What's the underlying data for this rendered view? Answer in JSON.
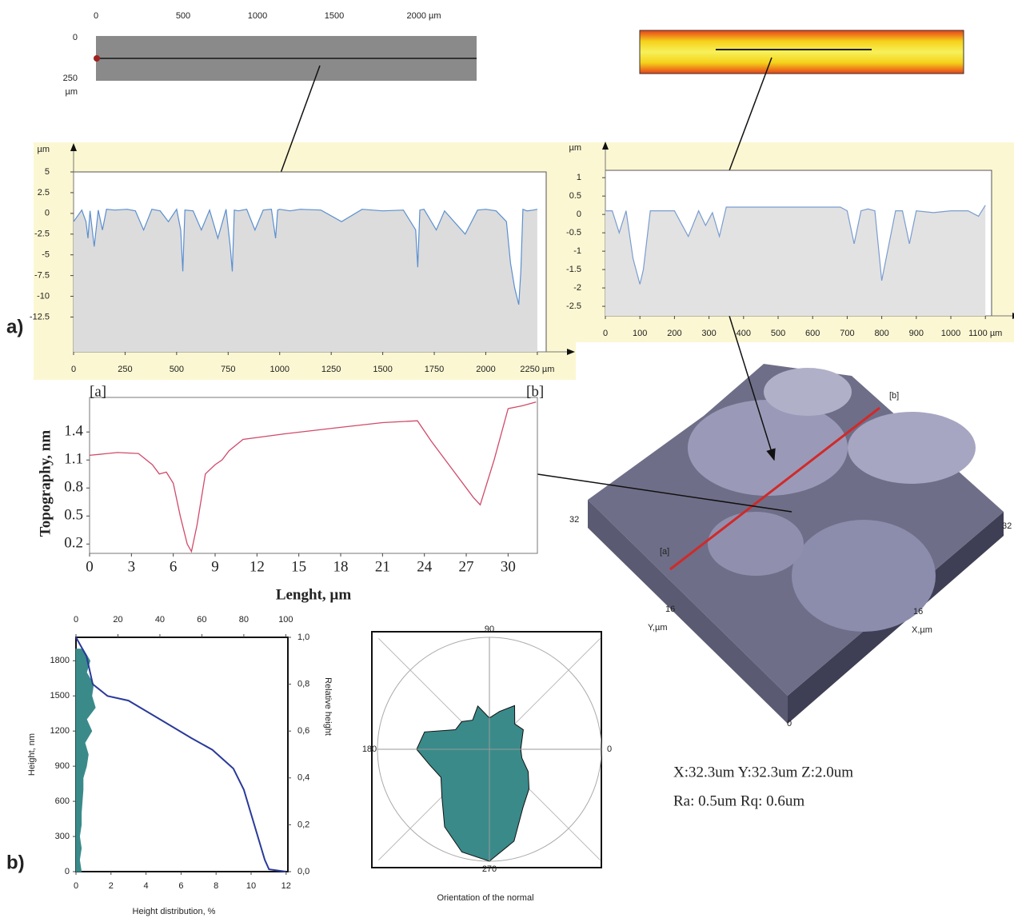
{
  "panel_labels": [
    "a)",
    "b)"
  ],
  "micrograph": {
    "x_labels": [
      "0",
      "500",
      "1000",
      "1500",
      "2000 µm"
    ],
    "y_labels": [
      "0",
      "250",
      "µm"
    ]
  },
  "surface_3d": {
    "labels": [
      "[b]",
      "[a]",
      "32",
      "16",
      "Y,µm",
      "16",
      "X,µm",
      "32",
      "0"
    ]
  },
  "stats": [
    "X:32.3um  Y:32.3um  Z:2.0um",
    "Ra: 0.5um  Rq: 0.6um"
  ],
  "chart_data": [
    {
      "type": "area",
      "y_unit": "µm",
      "x": [
        0,
        40,
        60,
        70,
        80,
        100,
        120,
        140,
        160,
        200,
        260,
        300,
        340,
        380,
        420,
        460,
        500,
        520,
        530,
        540,
        580,
        620,
        660,
        700,
        740,
        760,
        770,
        780,
        800,
        840,
        880,
        920,
        960,
        980,
        990,
        1000,
        1050,
        1100,
        1200,
        1300,
        1400,
        1500,
        1600,
        1660,
        1670,
        1680,
        1700,
        1760,
        1800,
        1900,
        1960,
        2000,
        2050,
        2100,
        2120,
        2140,
        2160,
        2170,
        2180,
        2200,
        2230,
        2250
      ],
      "series": [
        {
          "color": "#5b8fd0",
          "fill": "#dcdcdc",
          "values": [
            -1,
            0.4,
            -1,
            -3,
            0.3,
            -4,
            0.4,
            -2,
            0.5,
            0.4,
            0.5,
            0.3,
            -2,
            0.5,
            0.3,
            -1,
            0.5,
            -2,
            -7,
            0.4,
            0.3,
            -2,
            0.4,
            -3,
            0.5,
            -4,
            -7,
            0.4,
            0.3,
            0.5,
            -2,
            0.4,
            0.5,
            -3,
            0.4,
            0.5,
            0.3,
            0.5,
            0.4,
            -1,
            0.5,
            0.3,
            0.4,
            -2,
            -6.5,
            0.4,
            0.5,
            -2,
            0.3,
            -2.5,
            0.4,
            0.5,
            0.3,
            -1,
            -6,
            -9,
            -11,
            -7,
            0.5,
            0.3,
            0.4,
            0.5
          ]
        }
      ],
      "xlim": [
        0,
        2293
      ],
      "ylim": [
        -16.7,
        5
      ],
      "xticks": [
        0,
        250,
        500,
        750,
        1000,
        1250,
        1500,
        1750,
        2000,
        {
          "value": 2250,
          "label": "2250 µm"
        }
      ],
      "yticks": [
        5,
        2.5,
        0,
        -2.5,
        -5,
        -7.5,
        -10,
        -12.5
      ]
    },
    {
      "type": "area",
      "y_unit": "µm",
      "x": [
        0,
        20,
        40,
        60,
        80,
        100,
        110,
        130,
        150,
        200,
        240,
        270,
        290,
        310,
        330,
        350,
        400,
        500,
        600,
        680,
        700,
        720,
        740,
        760,
        780,
        800,
        840,
        860,
        880,
        900,
        950,
        1000,
        1050,
        1080,
        1100
      ],
      "series": [
        {
          "color": "#7a9cd0",
          "fill": "#e2e2e2",
          "values": [
            0.1,
            0.1,
            -0.5,
            0.1,
            -1.2,
            -1.9,
            -1.5,
            0.1,
            0.1,
            0.1,
            -0.6,
            0.1,
            -0.3,
            0.05,
            -0.6,
            0.2,
            0.2,
            0.2,
            0.2,
            0.2,
            0.1,
            -0.8,
            0.1,
            0.15,
            0.1,
            -1.8,
            0.1,
            0.1,
            -0.8,
            0.1,
            0.05,
            0.1,
            0.1,
            -0.05,
            0.25
          ]
        }
      ],
      "xlim": [
        0,
        1118
      ],
      "ylim": [
        -2.76,
        1.2
      ],
      "xticks": [
        0,
        100,
        200,
        300,
        400,
        500,
        600,
        700,
        800,
        900,
        1000,
        {
          "value": 1100,
          "label": "1100 µm"
        }
      ],
      "yticks": [
        1,
        0.5,
        0,
        -0.5,
        -1,
        -1.5,
        -2,
        -2.5
      ]
    },
    {
      "type": "line",
      "x_label": "Lenght, µm",
      "y_label": "Topography, nm",
      "end_labels": [
        "[a]",
        "[b]"
      ],
      "x": [
        0,
        2,
        3.5,
        4.5,
        5,
        5.5,
        6,
        6.5,
        7,
        7.3,
        7.7,
        8.3,
        9,
        9.5,
        10,
        11,
        14,
        18,
        21,
        23.5,
        24.5,
        26,
        27.5,
        28,
        29,
        30,
        31,
        32
      ],
      "series": [
        {
          "color": "#d04a6a",
          "values": [
            1.15,
            1.18,
            1.17,
            1.05,
            0.95,
            0.97,
            0.85,
            0.5,
            0.2,
            0.12,
            0.4,
            0.95,
            1.05,
            1.1,
            1.2,
            1.32,
            1.38,
            1.45,
            1.5,
            1.52,
            1.3,
            1.0,
            0.7,
            0.62,
            1.1,
            1.65,
            1.68,
            1.72
          ]
        }
      ],
      "xlim": [
        0,
        32.1
      ],
      "ylim": [
        0.1,
        1.77
      ],
      "xticks": [
        0,
        3,
        6,
        9,
        12,
        15,
        18,
        21,
        24,
        27,
        30
      ],
      "yticks": [
        0.2,
        0.5,
        0.8,
        1.1,
        1.4
      ]
    },
    {
      "type": "combo",
      "x_label": "Height distribution, %",
      "y_label": "Height, nm",
      "y2_label": "Relative height",
      "series": [
        {
          "color": "#3a8a8a",
          "heights": [
            0,
            100,
            200,
            300,
            400,
            500,
            600,
            700,
            800,
            900,
            1000,
            1100,
            1200,
            1300,
            1400,
            1500,
            1600,
            1700,
            1800,
            1900
          ],
          "values": [
            0.3,
            0.2,
            0.3,
            0.2,
            0.3,
            0.3,
            0.35,
            0.4,
            0.4,
            0.6,
            0.7,
            0.5,
            0.9,
            0.6,
            1.1,
            0.9,
            1.0,
            0.6,
            0.8,
            0.4
          ]
        },
        {
          "color": "#2a3a9a",
          "axis": "y2",
          "x_axis": "x2",
          "x": [
            0,
            5,
            8,
            15,
            25,
            40,
            55,
            65,
            75,
            80,
            85,
            90,
            92,
            100
          ],
          "values": [
            1.0,
            0.92,
            0.8,
            0.75,
            0.73,
            0.65,
            0.57,
            0.52,
            0.44,
            0.35,
            0.2,
            0.05,
            0.01,
            0
          ]
        }
      ],
      "xlim": [
        0,
        12.1
      ],
      "xticks": [
        0,
        2,
        4,
        6,
        8,
        10,
        12
      ],
      "x2lim": [
        0,
        101
      ],
      "x2ticks": [
        0,
        20,
        40,
        60,
        80,
        100
      ],
      "ylim": [
        0,
        2000
      ],
      "yticks": [
        0,
        300,
        600,
        900,
        1200,
        1500,
        1800
      ],
      "y2lim": [
        0,
        1
      ],
      "y2ticks": [
        {
          "value": 0,
          "label": "0,0"
        },
        {
          "value": 0.2,
          "label": "0,2"
        },
        {
          "value": 0.4,
          "label": "0,4"
        },
        {
          "value": 0.6,
          "label": "0,6"
        },
        {
          "value": 0.8,
          "label": "0,8"
        },
        {
          "value": 1,
          "label": "1,0"
        }
      ]
    },
    {
      "type": "polar",
      "x_label": "Orientation of the normal",
      "color": "#3a8a8a",
      "angles": [
        0,
        15,
        30,
        45,
        60,
        75,
        90,
        105,
        120,
        135,
        150,
        165,
        180,
        195,
        210,
        225,
        240,
        255,
        270,
        285,
        300,
        315,
        330,
        345
      ],
      "values": [
        0.28,
        0.3,
        0.35,
        0.32,
        0.45,
        0.35,
        0.28,
        0.4,
        0.3,
        0.35,
        0.35,
        0.6,
        0.65,
        0.55,
        0.5,
        0.6,
        0.8,
        0.95,
        1.0,
        0.85,
        0.6,
        0.5,
        0.4,
        0.3
      ],
      "rlim": [
        0,
        1
      ],
      "angle_ticks": [
        0,
        90,
        180,
        270
      ]
    }
  ]
}
